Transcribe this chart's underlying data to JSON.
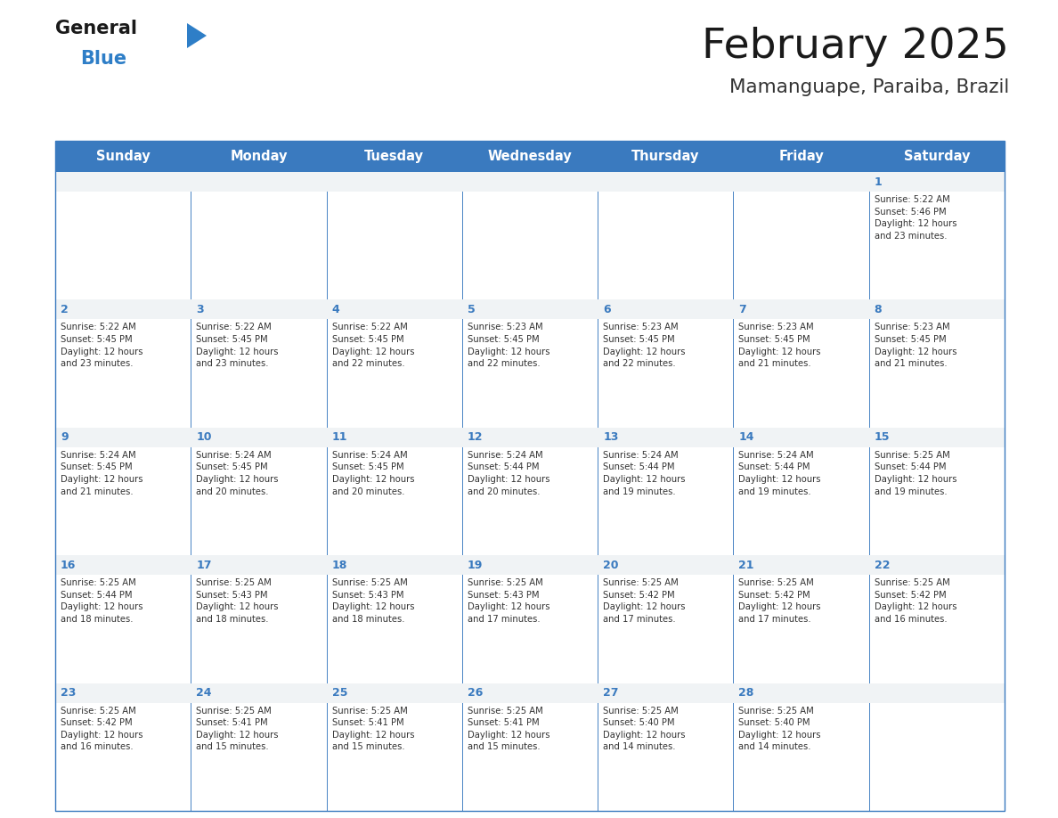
{
  "title": "February 2025",
  "subtitle": "Mamanguape, Paraiba, Brazil",
  "header_bg": "#3a7abf",
  "header_text": "#ffffff",
  "cell_bg_empty_top": "#f0f3f5",
  "cell_bg_white": "#ffffff",
  "border_color": "#3a7abf",
  "day_headers": [
    "Sunday",
    "Monday",
    "Tuesday",
    "Wednesday",
    "Thursday",
    "Friday",
    "Saturday"
  ],
  "title_color": "#1a1a1a",
  "subtitle_color": "#333333",
  "day_num_color": "#3a7abf",
  "cell_text_color": "#333333",
  "logo_general_color": "#1a1a1a",
  "logo_blue_color": "#2e7ec7",
  "fig_width": 11.88,
  "fig_height": 9.18,
  "weeks": [
    [
      {
        "day": null,
        "info": null
      },
      {
        "day": null,
        "info": null
      },
      {
        "day": null,
        "info": null
      },
      {
        "day": null,
        "info": null
      },
      {
        "day": null,
        "info": null
      },
      {
        "day": null,
        "info": null
      },
      {
        "day": 1,
        "info": "Sunrise: 5:22 AM\nSunset: 5:46 PM\nDaylight: 12 hours\nand 23 minutes."
      }
    ],
    [
      {
        "day": 2,
        "info": "Sunrise: 5:22 AM\nSunset: 5:45 PM\nDaylight: 12 hours\nand 23 minutes."
      },
      {
        "day": 3,
        "info": "Sunrise: 5:22 AM\nSunset: 5:45 PM\nDaylight: 12 hours\nand 23 minutes."
      },
      {
        "day": 4,
        "info": "Sunrise: 5:22 AM\nSunset: 5:45 PM\nDaylight: 12 hours\nand 22 minutes."
      },
      {
        "day": 5,
        "info": "Sunrise: 5:23 AM\nSunset: 5:45 PM\nDaylight: 12 hours\nand 22 minutes."
      },
      {
        "day": 6,
        "info": "Sunrise: 5:23 AM\nSunset: 5:45 PM\nDaylight: 12 hours\nand 22 minutes."
      },
      {
        "day": 7,
        "info": "Sunrise: 5:23 AM\nSunset: 5:45 PM\nDaylight: 12 hours\nand 21 minutes."
      },
      {
        "day": 8,
        "info": "Sunrise: 5:23 AM\nSunset: 5:45 PM\nDaylight: 12 hours\nand 21 minutes."
      }
    ],
    [
      {
        "day": 9,
        "info": "Sunrise: 5:24 AM\nSunset: 5:45 PM\nDaylight: 12 hours\nand 21 minutes."
      },
      {
        "day": 10,
        "info": "Sunrise: 5:24 AM\nSunset: 5:45 PM\nDaylight: 12 hours\nand 20 minutes."
      },
      {
        "day": 11,
        "info": "Sunrise: 5:24 AM\nSunset: 5:45 PM\nDaylight: 12 hours\nand 20 minutes."
      },
      {
        "day": 12,
        "info": "Sunrise: 5:24 AM\nSunset: 5:44 PM\nDaylight: 12 hours\nand 20 minutes."
      },
      {
        "day": 13,
        "info": "Sunrise: 5:24 AM\nSunset: 5:44 PM\nDaylight: 12 hours\nand 19 minutes."
      },
      {
        "day": 14,
        "info": "Sunrise: 5:24 AM\nSunset: 5:44 PM\nDaylight: 12 hours\nand 19 minutes."
      },
      {
        "day": 15,
        "info": "Sunrise: 5:25 AM\nSunset: 5:44 PM\nDaylight: 12 hours\nand 19 minutes."
      }
    ],
    [
      {
        "day": 16,
        "info": "Sunrise: 5:25 AM\nSunset: 5:44 PM\nDaylight: 12 hours\nand 18 minutes."
      },
      {
        "day": 17,
        "info": "Sunrise: 5:25 AM\nSunset: 5:43 PM\nDaylight: 12 hours\nand 18 minutes."
      },
      {
        "day": 18,
        "info": "Sunrise: 5:25 AM\nSunset: 5:43 PM\nDaylight: 12 hours\nand 18 minutes."
      },
      {
        "day": 19,
        "info": "Sunrise: 5:25 AM\nSunset: 5:43 PM\nDaylight: 12 hours\nand 17 minutes."
      },
      {
        "day": 20,
        "info": "Sunrise: 5:25 AM\nSunset: 5:42 PM\nDaylight: 12 hours\nand 17 minutes."
      },
      {
        "day": 21,
        "info": "Sunrise: 5:25 AM\nSunset: 5:42 PM\nDaylight: 12 hours\nand 17 minutes."
      },
      {
        "day": 22,
        "info": "Sunrise: 5:25 AM\nSunset: 5:42 PM\nDaylight: 12 hours\nand 16 minutes."
      }
    ],
    [
      {
        "day": 23,
        "info": "Sunrise: 5:25 AM\nSunset: 5:42 PM\nDaylight: 12 hours\nand 16 minutes."
      },
      {
        "day": 24,
        "info": "Sunrise: 5:25 AM\nSunset: 5:41 PM\nDaylight: 12 hours\nand 15 minutes."
      },
      {
        "day": 25,
        "info": "Sunrise: 5:25 AM\nSunset: 5:41 PM\nDaylight: 12 hours\nand 15 minutes."
      },
      {
        "day": 26,
        "info": "Sunrise: 5:25 AM\nSunset: 5:41 PM\nDaylight: 12 hours\nand 15 minutes."
      },
      {
        "day": 27,
        "info": "Sunrise: 5:25 AM\nSunset: 5:40 PM\nDaylight: 12 hours\nand 14 minutes."
      },
      {
        "day": 28,
        "info": "Sunrise: 5:25 AM\nSunset: 5:40 PM\nDaylight: 12 hours\nand 14 minutes."
      },
      {
        "day": null,
        "info": null
      }
    ]
  ]
}
